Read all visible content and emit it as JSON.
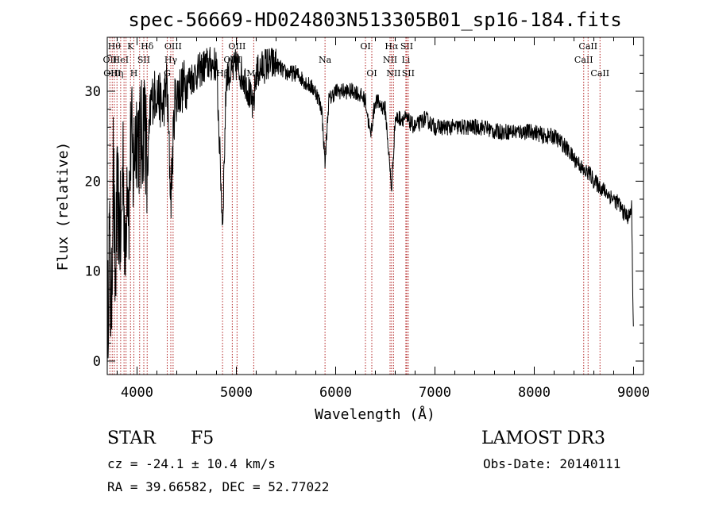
{
  "chart_data": {
    "type": "line",
    "title": "spec-56669-HD024803N513305B01_sp16-184.fits",
    "xlabel": "Wavelength (Å)",
    "ylabel": "Flux (relative)",
    "xlim": [
      3700,
      9100
    ],
    "ylim": [
      -1.5,
      36
    ],
    "x_ticks": [
      4000,
      5000,
      6000,
      7000,
      8000,
      9000
    ],
    "y_ticks": [
      0,
      10,
      20,
      30
    ],
    "grid": false,
    "series": [
      {
        "name": "flux",
        "x": [
          3700,
          3720,
          3740,
          3760,
          3780,
          3800,
          3820,
          3840,
          3860,
          3880,
          3900,
          3920,
          3940,
          3960,
          3980,
          4000,
          4040,
          4080,
          4100,
          4140,
          4200,
          4260,
          4300,
          4340,
          4380,
          4420,
          4500,
          4600,
          4700,
          4800,
          4861,
          4900,
          4960,
          5000,
          5100,
          5170,
          5200,
          5300,
          5400,
          5500,
          5600,
          5700,
          5800,
          5860,
          5893,
          5930,
          6000,
          6100,
          6200,
          6300,
          6350,
          6400,
          6500,
          6563,
          6600,
          6700,
          6800,
          6900,
          7000,
          7100,
          7200,
          7300,
          7400,
          7500,
          7600,
          7700,
          7800,
          7900,
          8000,
          8100,
          8200,
          8300,
          8400,
          8450,
          8500,
          8550,
          8600,
          8650,
          8700,
          8750,
          8800,
          8850,
          8900,
          8950,
          8980,
          9000
        ],
        "y": [
          1,
          14,
          4,
          22,
          8,
          18,
          16,
          13,
          24,
          10,
          22,
          17,
          26,
          21,
          25,
          26,
          24,
          28,
          20,
          29,
          30,
          28,
          31,
          18,
          29,
          30,
          31,
          32,
          33,
          33,
          15,
          32,
          32,
          33,
          31,
          28,
          32,
          33,
          33,
          32,
          32,
          31,
          30,
          28,
          22,
          29,
          30,
          30,
          30,
          29,
          25,
          29,
          28,
          19,
          27,
          27,
          26,
          27,
          26,
          26,
          26,
          26,
          26,
          26,
          25.5,
          25.5,
          25.5,
          25.5,
          25.5,
          25,
          25,
          24,
          22.5,
          22,
          21,
          21,
          20,
          19.5,
          19,
          18.5,
          18,
          17.5,
          16.5,
          16,
          17,
          2
        ]
      }
    ],
    "line_markers": [
      {
        "x": 3727,
        "label": "OII",
        "row": 2
      },
      {
        "x": 3750,
        "label": "OIII",
        "row": 3
      },
      {
        "x": 3771,
        "label": "Hθ",
        "row": 1
      },
      {
        "x": 3798,
        "label": "Hη",
        "row": 3
      },
      {
        "x": 3835,
        "label": "HeI",
        "row": 2
      },
      {
        "x": 3869,
        "label": "",
        "row": 0
      },
      {
        "x": 3889,
        "label": "",
        "row": 0
      },
      {
        "x": 3934,
        "label": "K",
        "row": 1
      },
      {
        "x": 3968,
        "label": "H",
        "row": 3
      },
      {
        "x": 4026,
        "label": "",
        "row": 0
      },
      {
        "x": 4068,
        "label": "SII",
        "row": 2
      },
      {
        "x": 4102,
        "label": "Hδ",
        "row": 1
      },
      {
        "x": 4304,
        "label": "G",
        "row": 3
      },
      {
        "x": 4340,
        "label": "Hγ",
        "row": 2
      },
      {
        "x": 4363,
        "label": "OIII",
        "row": 1
      },
      {
        "x": 4861,
        "label": "Hβ",
        "row": 3
      },
      {
        "x": 4959,
        "label": "OIII",
        "row": 2
      },
      {
        "x": 5007,
        "label": "OIII",
        "row": 1
      },
      {
        "x": 5175,
        "label": "Mg",
        "row": 3
      },
      {
        "x": 5893,
        "label": "Na",
        "row": 2
      },
      {
        "x": 6300,
        "label": "OI",
        "row": 1
      },
      {
        "x": 6364,
        "label": "OI",
        "row": 3
      },
      {
        "x": 6548,
        "label": "NII",
        "row": 2
      },
      {
        "x": 6563,
        "label": "Hα",
        "row": 1
      },
      {
        "x": 6583,
        "label": "NII",
        "row": 3
      },
      {
        "x": 6707,
        "label": "Li",
        "row": 2
      },
      {
        "x": 6716,
        "label": "SII",
        "row": 1
      },
      {
        "x": 6731,
        "label": "SII",
        "row": 3
      },
      {
        "x": 8498,
        "label": "CaII",
        "row": 2
      },
      {
        "x": 8542,
        "label": "CaII",
        "row": 1
      },
      {
        "x": 8662,
        "label": "CaII",
        "row": 3
      }
    ]
  },
  "info": {
    "object_type": "STAR",
    "subclass": "F5",
    "survey": "LAMOST DR3",
    "cz": "cz = -24.1 ± 10.4 km/s",
    "obs_date": "Obs-Date: 20140111",
    "coords": "RA =  39.66582, DEC =  52.77022"
  },
  "colors": {
    "line": "#000000",
    "marker": "#b22222",
    "background": "#ffffff"
  }
}
